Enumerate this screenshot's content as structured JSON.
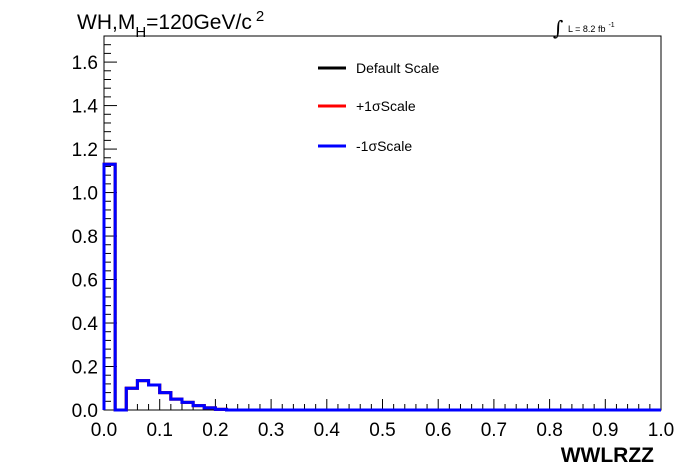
{
  "header": {
    "title_main": "WH,M",
    "title_sub": "H",
    "title_rest": "=120GeV/c",
    "title_sup": "2",
    "lumi_prefix": "L = 8.2 fb",
    "lumi_sup": "-1"
  },
  "chart_data": {
    "type": "line",
    "title": "WH,M_H=120GeV/c^2",
    "xlabel": "WWLRZZ",
    "ylabel": "",
    "xlim": [
      0,
      1
    ],
    "ylim": [
      0,
      1.72
    ],
    "xticks": [
      "0.0",
      "0.1",
      "0.2",
      "0.3",
      "0.4",
      "0.5",
      "0.6",
      "0.7",
      "0.8",
      "0.9",
      "1.0"
    ],
    "yticks": [
      "0.0",
      "0.2",
      "0.4",
      "0.6",
      "0.8",
      "1.0",
      "1.2",
      "1.4",
      "1.6"
    ],
    "legend_placement": "top-center",
    "bin_edges": [
      0,
      0.02,
      0.04,
      0.06,
      0.08,
      0.1,
      0.12,
      0.14,
      0.16,
      0.18,
      0.2,
      0.22,
      0.24,
      0.26,
      0.28,
      0.3,
      0.32,
      0.34,
      0.36,
      0.38,
      0.4,
      0.42,
      0.44,
      0.46,
      0.48,
      0.5,
      0.52,
      0.54,
      0.56,
      0.58,
      0.6,
      0.62,
      0.64,
      0.66,
      0.68,
      0.7,
      0.72,
      0.74,
      0.76,
      0.78,
      0.8,
      0.82,
      0.84,
      0.86,
      0.88,
      0.9,
      0.92,
      0.94,
      0.96,
      0.98,
      1.0
    ],
    "series": [
      {
        "name": "Default Scale",
        "color": "#000000",
        "values": [
          1.13,
          0.0,
          0.1,
          0.135,
          0.115,
          0.08,
          0.05,
          0.035,
          0.02,
          0.01,
          0.003,
          0.0,
          0.0,
          0.0,
          0.0,
          0.0,
          0.0,
          0.0,
          0.0,
          0.0,
          0.0,
          0.0,
          0.0,
          0.0,
          0.0,
          0.0,
          0.0,
          0.0,
          0.0,
          0.0,
          0.0,
          0.0,
          0.0,
          0.0,
          0.0,
          0.0,
          0.0,
          0.0,
          0.0,
          0.0,
          0.0,
          0.0,
          0.0,
          0.0,
          0.0,
          0.0,
          0.0,
          0.0,
          0.0,
          0.0
        ]
      },
      {
        "name": "+1σScale",
        "color": "#ff0000",
        "values": [
          1.13,
          0.0,
          0.1,
          0.135,
          0.115,
          0.08,
          0.05,
          0.035,
          0.02,
          0.01,
          0.003,
          0.0,
          0.0,
          0.0,
          0.0,
          0.0,
          0.0,
          0.0,
          0.0,
          0.0,
          0.0,
          0.0,
          0.0,
          0.0,
          0.0,
          0.0,
          0.0,
          0.0,
          0.0,
          0.0,
          0.0,
          0.0,
          0.0,
          0.0,
          0.0,
          0.0,
          0.0,
          0.0,
          0.0,
          0.0,
          0.0,
          0.0,
          0.0,
          0.0,
          0.0,
          0.0,
          0.0,
          0.0,
          0.0,
          0.0
        ]
      },
      {
        "name": "-1σScale",
        "color": "#0000ff",
        "values": [
          1.13,
          0.0,
          0.1,
          0.135,
          0.115,
          0.08,
          0.05,
          0.035,
          0.02,
          0.01,
          0.003,
          0.0,
          0.0,
          0.0,
          0.0,
          0.0,
          0.0,
          0.0,
          0.0,
          0.0,
          0.0,
          0.0,
          0.0,
          0.0,
          0.0,
          0.0,
          0.0,
          0.0,
          0.0,
          0.0,
          0.0,
          0.0,
          0.0,
          0.0,
          0.0,
          0.0,
          0.0,
          0.0,
          0.0,
          0.0,
          0.0,
          0.0,
          0.0,
          0.0,
          0.0,
          0.0,
          0.0,
          0.0,
          0.0,
          0.0
        ]
      }
    ]
  }
}
